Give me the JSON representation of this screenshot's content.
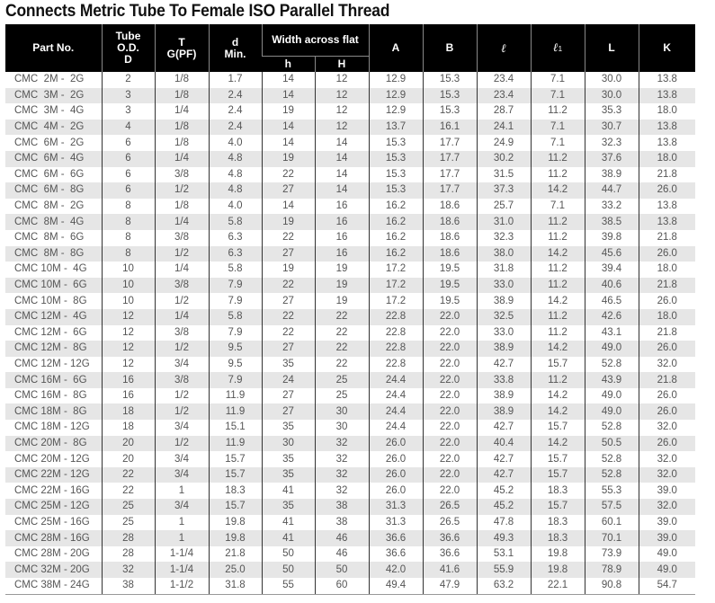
{
  "title": "Connects Metric Tube To Female ISO Parallel Thread",
  "headers": {
    "part_no": "Part No.",
    "tube": "Tube O.D. D",
    "t": "T G(PF)",
    "d": "d Min.",
    "width_across_flat": "Width across flat",
    "h": "h",
    "H": "H",
    "A": "A",
    "B": "B",
    "l": "ℓ",
    "l1": "ℓ",
    "l1_sub": "1",
    "L": "L",
    "K": "K"
  },
  "rows": [
    [
      "CMC  2M -  2G",
      "2",
      "1/8",
      "1.7",
      "14",
      "12",
      "12.9",
      "15.3",
      "23.4",
      "7.1",
      "30.0",
      "13.8"
    ],
    [
      "CMC  3M -  2G",
      "3",
      "1/8",
      "2.4",
      "14",
      "12",
      "12.9",
      "15.3",
      "23.4",
      "7.1",
      "30.0",
      "13.8"
    ],
    [
      "CMC  3M -  4G",
      "3",
      "1/4",
      "2.4",
      "19",
      "12",
      "12.9",
      "15.3",
      "28.7",
      "11.2",
      "35.3",
      "18.0"
    ],
    [
      "CMC  4M -  2G",
      "4",
      "1/8",
      "2.4",
      "14",
      "12",
      "13.7",
      "16.1",
      "24.1",
      "7.1",
      "30.7",
      "13.8"
    ],
    [
      "CMC  6M -  2G",
      "6",
      "1/8",
      "4.0",
      "14",
      "14",
      "15.3",
      "17.7",
      "24.9",
      "7.1",
      "32.3",
      "13.8"
    ],
    [
      "CMC  6M -  4G",
      "6",
      "1/4",
      "4.8",
      "19",
      "14",
      "15.3",
      "17.7",
      "30.2",
      "11.2",
      "37.6",
      "18.0"
    ],
    [
      "CMC  6M -  6G",
      "6",
      "3/8",
      "4.8",
      "22",
      "14",
      "15.3",
      "17.7",
      "31.5",
      "11.2",
      "38.9",
      "21.8"
    ],
    [
      "CMC  6M -  8G",
      "6",
      "1/2",
      "4.8",
      "27",
      "14",
      "15.3",
      "17.7",
      "37.3",
      "14.2",
      "44.7",
      "26.0"
    ],
    [
      "CMC  8M -  2G",
      "8",
      "1/8",
      "4.0",
      "14",
      "16",
      "16.2",
      "18.6",
      "25.7",
      "7.1",
      "33.2",
      "13.8"
    ],
    [
      "CMC  8M -  4G",
      "8",
      "1/4",
      "5.8",
      "19",
      "16",
      "16.2",
      "18.6",
      "31.0",
      "11.2",
      "38.5",
      "13.8"
    ],
    [
      "CMC  8M -  6G",
      "8",
      "3/8",
      "6.3",
      "22",
      "16",
      "16.2",
      "18.6",
      "32.3",
      "11.2",
      "39.8",
      "21.8"
    ],
    [
      "CMC  8M -  8G",
      "8",
      "1/2",
      "6.3",
      "27",
      "16",
      "16.2",
      "18.6",
      "38.0",
      "14.2",
      "45.6",
      "26.0"
    ],
    [
      "CMC 10M -  4G",
      "10",
      "1/4",
      "5.8",
      "19",
      "19",
      "17.2",
      "19.5",
      "31.8",
      "11.2",
      "39.4",
      "18.0"
    ],
    [
      "CMC 10M -  6G",
      "10",
      "3/8",
      "7.9",
      "22",
      "19",
      "17.2",
      "19.5",
      "33.0",
      "11.2",
      "40.6",
      "21.8"
    ],
    [
      "CMC 10M -  8G",
      "10",
      "1/2",
      "7.9",
      "27",
      "19",
      "17.2",
      "19.5",
      "38.9",
      "14.2",
      "46.5",
      "26.0"
    ],
    [
      "CMC 12M -  4G",
      "12",
      "1/4",
      "5.8",
      "22",
      "22",
      "22.8",
      "22.0",
      "32.5",
      "11.2",
      "42.6",
      "18.0"
    ],
    [
      "CMC 12M -  6G",
      "12",
      "3/8",
      "7.9",
      "22",
      "22",
      "22.8",
      "22.0",
      "33.0",
      "11.2",
      "43.1",
      "21.8"
    ],
    [
      "CMC 12M -  8G",
      "12",
      "1/2",
      "9.5",
      "27",
      "22",
      "22.8",
      "22.0",
      "38.9",
      "14.2",
      "49.0",
      "26.0"
    ],
    [
      "CMC 12M - 12G",
      "12",
      "3/4",
      "9.5",
      "35",
      "22",
      "22.8",
      "22.0",
      "42.7",
      "15.7",
      "52.8",
      "32.0"
    ],
    [
      "CMC 16M -  6G",
      "16",
      "3/8",
      "7.9",
      "24",
      "25",
      "24.4",
      "22.0",
      "33.8",
      "11.2",
      "43.9",
      "21.8"
    ],
    [
      "CMC 16M -  8G",
      "16",
      "1/2",
      "11.9",
      "27",
      "25",
      "24.4",
      "22.0",
      "38.9",
      "14.2",
      "49.0",
      "26.0"
    ],
    [
      "CMC 18M -  8G",
      "18",
      "1/2",
      "11.9",
      "27",
      "30",
      "24.4",
      "22.0",
      "38.9",
      "14.2",
      "49.0",
      "26.0"
    ],
    [
      "CMC 18M - 12G",
      "18",
      "3/4",
      "15.1",
      "35",
      "30",
      "24.4",
      "22.0",
      "42.7",
      "15.7",
      "52.8",
      "32.0"
    ],
    [
      "CMC 20M -  8G",
      "20",
      "1/2",
      "11.9",
      "30",
      "32",
      "26.0",
      "22.0",
      "40.4",
      "14.2",
      "50.5",
      "26.0"
    ],
    [
      "CMC 20M - 12G",
      "20",
      "3/4",
      "15.7",
      "35",
      "32",
      "26.0",
      "22.0",
      "42.7",
      "15.7",
      "52.8",
      "32.0"
    ],
    [
      "CMC 22M - 12G",
      "22",
      "3/4",
      "15.7",
      "35",
      "32",
      "26.0",
      "22.0",
      "42.7",
      "15.7",
      "52.8",
      "32.0"
    ],
    [
      "CMC 22M - 16G",
      "22",
      "1",
      "18.3",
      "41",
      "32",
      "26.0",
      "22.0",
      "45.2",
      "18.3",
      "55.3",
      "39.0"
    ],
    [
      "CMC 25M - 12G",
      "25",
      "3/4",
      "15.7",
      "35",
      "38",
      "31.3",
      "26.5",
      "45.2",
      "15.7",
      "57.5",
      "32.0"
    ],
    [
      "CMC 25M - 16G",
      "25",
      "1",
      "19.8",
      "41",
      "38",
      "31.3",
      "26.5",
      "47.8",
      "18.3",
      "60.1",
      "39.0"
    ],
    [
      "CMC 28M - 16G",
      "28",
      "1",
      "19.8",
      "41",
      "46",
      "36.6",
      "36.6",
      "49.3",
      "18.3",
      "70.1",
      "39.0"
    ],
    [
      "CMC 28M - 20G",
      "28",
      "1-1/4",
      "21.8",
      "50",
      "46",
      "36.6",
      "36.6",
      "53.1",
      "19.8",
      "73.9",
      "49.0"
    ],
    [
      "CMC 32M - 20G",
      "32",
      "1-1/4",
      "25.0",
      "50",
      "50",
      "42.0",
      "41.6",
      "55.9",
      "19.8",
      "78.9",
      "49.0"
    ],
    [
      "CMC 38M - 24G",
      "38",
      "1-1/2",
      "31.8",
      "55",
      "60",
      "49.4",
      "47.9",
      "63.2",
      "22.1",
      "90.8",
      "54.7"
    ]
  ]
}
